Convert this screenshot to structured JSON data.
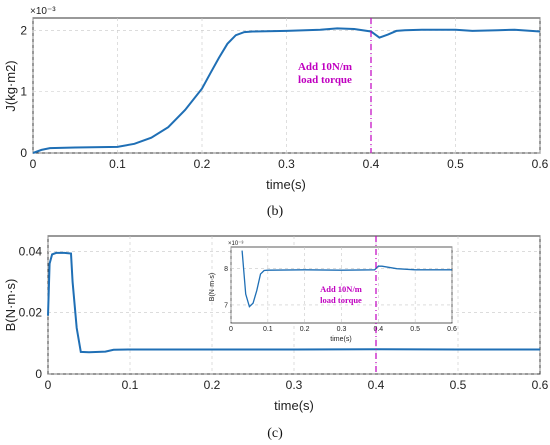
{
  "chart_data": [
    {
      "type": "line",
      "panel": "(b)",
      "xlabel": "time(s)",
      "ylabel": "J(kg·m2)",
      "y_exponent_label": "×10⁻³",
      "xlim": [
        0,
        0.6
      ],
      "ylim": [
        0,
        2.2
      ],
      "xticks": [
        "0",
        "0.1",
        "0.2",
        "0.3",
        "0.4",
        "0.5",
        "0.6"
      ],
      "yticks": [
        "0",
        "1",
        "2"
      ],
      "grid": true,
      "series": [
        {
          "color": "#1f6fb5",
          "x": [
            0,
            0.01,
            0.02,
            0.05,
            0.1,
            0.12,
            0.14,
            0.16,
            0.18,
            0.2,
            0.21,
            0.22,
            0.23,
            0.24,
            0.25,
            0.26,
            0.3,
            0.34,
            0.36,
            0.38,
            0.4,
            0.41,
            0.42,
            0.43,
            0.44,
            0.46,
            0.5,
            0.52,
            0.55,
            0.57,
            0.6
          ],
          "y": [
            0.0,
            0.05,
            0.08,
            0.09,
            0.1,
            0.15,
            0.25,
            0.42,
            0.7,
            1.05,
            1.3,
            1.55,
            1.78,
            1.92,
            1.97,
            1.98,
            1.99,
            2.01,
            2.03,
            2.02,
            1.98,
            1.88,
            1.93,
            1.99,
            2.0,
            2.01,
            2.01,
            1.99,
            2.0,
            2.01,
            1.98
          ]
        }
      ],
      "vline": {
        "x": 0.4,
        "color": "#c000c0"
      },
      "annotation": [
        "Add 10N/m",
        "load torque"
      ]
    },
    {
      "type": "line",
      "panel": "(c)",
      "xlabel": "time(s)",
      "ylabel": "B(N·m·s)",
      "xlim": [
        0,
        0.6
      ],
      "ylim": [
        0,
        0.045
      ],
      "xticks": [
        "0",
        "0.1",
        "0.2",
        "0.3",
        "0.4",
        "0.5",
        "0.6"
      ],
      "yticks": [
        "0",
        "0.02",
        "0.04"
      ],
      "grid": true,
      "series": [
        {
          "color": "#1f6fb5",
          "x": [
            0,
            0.002,
            0.005,
            0.01,
            0.02,
            0.028,
            0.03,
            0.035,
            0.04,
            0.05,
            0.07,
            0.08,
            0.1,
            0.2,
            0.3,
            0.4,
            0.5,
            0.6
          ],
          "y": [
            0.019,
            0.036,
            0.039,
            0.0395,
            0.0395,
            0.0393,
            0.03,
            0.015,
            0.0072,
            0.0071,
            0.0073,
            0.0079,
            0.008,
            0.008,
            0.008,
            0.0081,
            0.008,
            0.008
          ]
        }
      ],
      "vline": {
        "x": 0.4,
        "color": "#c000c0"
      },
      "inset": {
        "xlabel": "time(s)",
        "ylabel": "B(N·m·s)",
        "y_exponent_label": "×10⁻³",
        "xlim": [
          0,
          0.6
        ],
        "ylim": [
          6.5,
          8.6
        ],
        "xticks": [
          "0",
          "0.1",
          "0.2",
          "0.3",
          "0.4",
          "0.5",
          "0.6"
        ],
        "yticks": [
          "7",
          "8"
        ],
        "x": [
          0.03,
          0.04,
          0.05,
          0.06,
          0.07,
          0.08,
          0.09,
          0.1,
          0.2,
          0.3,
          0.39,
          0.4,
          0.41,
          0.45,
          0.5,
          0.6
        ],
        "y": [
          8.5,
          7.3,
          6.95,
          7.05,
          7.4,
          7.85,
          7.95,
          7.96,
          7.97,
          7.96,
          7.97,
          8.07,
          8.07,
          8.0,
          7.97,
          7.97
        ],
        "annotation": [
          "Add 10N/m",
          "load torque"
        ]
      }
    }
  ],
  "captions": [
    "(b)",
    "(c)"
  ]
}
